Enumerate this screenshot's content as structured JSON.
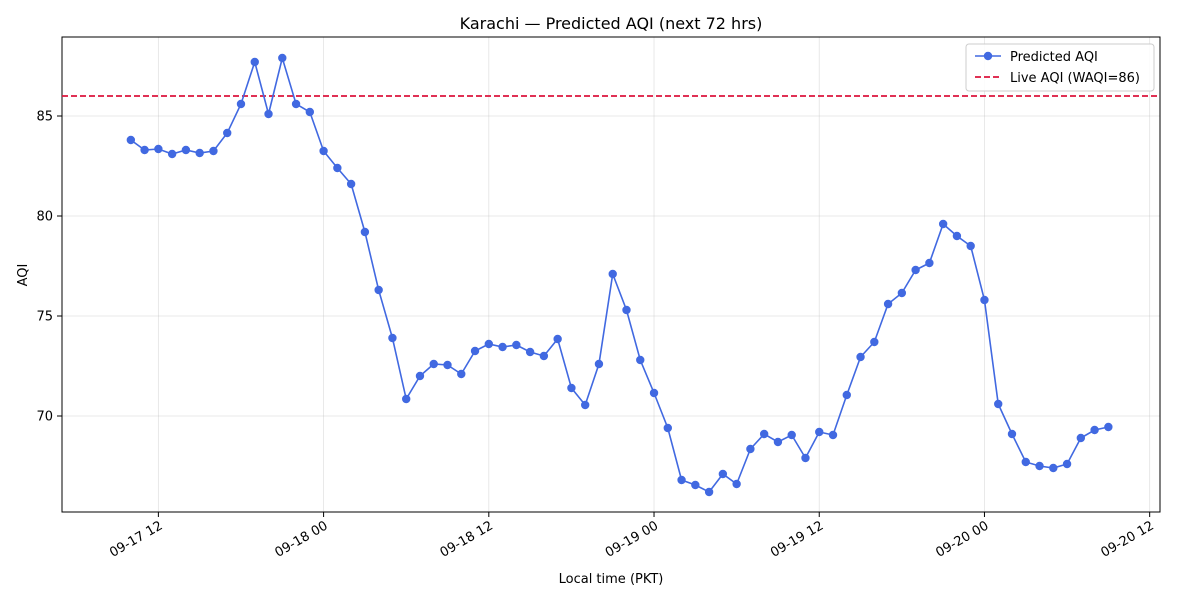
{
  "chart_data": {
    "type": "line",
    "title": "Karachi — Predicted AQI (next 72 hrs)",
    "xlabel": "Local time (PKT)",
    "ylabel": "AQI",
    "x_start": "2025-09-17T10:00",
    "x_step_hours": 1,
    "xlim": [
      "2025-09-17T05:00",
      "2025-09-20T12:45"
    ],
    "ylim": [
      65.2,
      88.95
    ],
    "x_ticks": [
      "09-17 12",
      "09-18 00",
      "09-18 12",
      "09-19 00",
      "09-19 12",
      "09-20 00",
      "09-20 12"
    ],
    "y_ticks": [
      70,
      75,
      80,
      85
    ],
    "grid": true,
    "legend_position": "top-right",
    "series": [
      {
        "name": "Predicted AQI",
        "color": "#4169e1",
        "values": [
          83.8,
          83.3,
          83.35,
          83.1,
          83.3,
          83.15,
          83.25,
          84.15,
          85.6,
          87.7,
          85.1,
          87.9,
          85.6,
          85.2,
          83.25,
          82.4,
          81.6,
          79.2,
          76.3,
          73.9,
          70.85,
          72.0,
          72.6,
          72.55,
          72.1,
          73.25,
          73.6,
          73.45,
          73.55,
          73.2,
          73.0,
          73.85,
          71.4,
          70.55,
          72.6,
          77.1,
          75.3,
          72.8,
          71.15,
          69.4,
          66.8,
          66.55,
          66.2,
          67.1,
          66.6,
          68.35,
          69.1,
          68.7,
          69.05,
          67.9,
          69.2,
          69.05,
          71.05,
          72.95,
          73.7,
          75.6,
          76.15,
          77.3,
          77.65,
          79.6,
          79.0,
          78.5,
          75.8,
          70.6,
          69.1,
          67.7,
          67.5,
          67.4,
          67.6,
          68.9,
          69.3,
          69.45
        ]
      }
    ],
    "reference_line": {
      "name": "Live AQI (WAQI=86)",
      "value": 86,
      "color": "#dc143c"
    }
  }
}
